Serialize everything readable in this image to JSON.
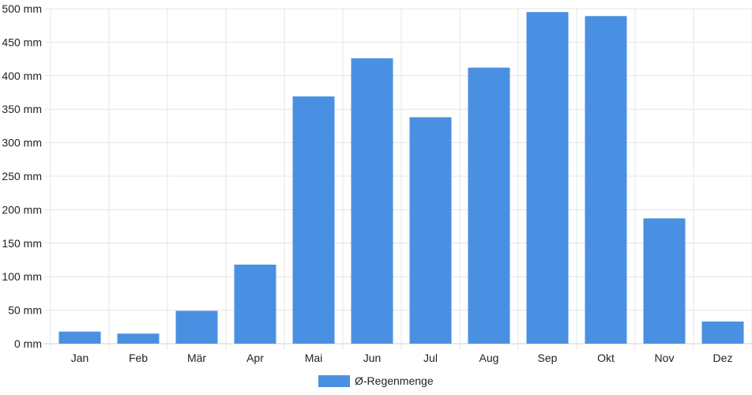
{
  "chart_data": {
    "type": "bar",
    "categories": [
      "Jan",
      "Feb",
      "Mär",
      "Apr",
      "Mai",
      "Jun",
      "Jul",
      "Aug",
      "Sep",
      "Okt",
      "Nov",
      "Dez"
    ],
    "series": [
      {
        "name": "Ø-Regenmenge",
        "values": [
          18,
          15,
          49,
          118,
          369,
          426,
          338,
          412,
          495,
          489,
          187,
          33
        ],
        "color": "#4a90e2"
      }
    ],
    "y_ticks": [
      "0 mm",
      "50 mm",
      "100 mm",
      "150 mm",
      "200 mm",
      "250 mm",
      "300 mm",
      "350 mm",
      "400 mm",
      "450 mm",
      "500 mm"
    ],
    "ylim": [
      0,
      500
    ],
    "grid": true,
    "legend_position": "bottom"
  }
}
